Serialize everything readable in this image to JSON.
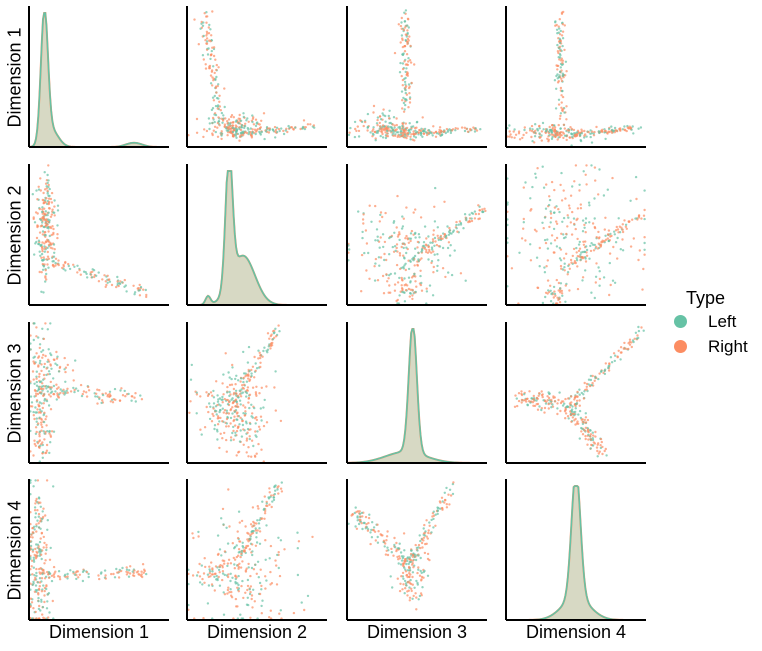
{
  "chart_data": {
    "type": "pairplot",
    "variables": [
      "Dimension 1",
      "Dimension 2",
      "Dimension 3",
      "Dimension 4"
    ],
    "diagonal": "kde",
    "off_diagonal": "scatter",
    "legend": {
      "title": "Type",
      "placement": "right",
      "entries": [
        {
          "name": "Left",
          "color": "#66c2a5"
        },
        {
          "name": "Right",
          "color": "#fc8d62"
        }
      ]
    },
    "diag_fill_color": "#d7d9c4",
    "point_alpha": 0.7,
    "approx_structure": {
      "Dimension 1": "sharp peak near low values with a long sparse tail",
      "Dimension 2": "single peak with small secondary bump on left",
      "Dimension 3": "narrow central peak",
      "Dimension 4": "narrow central peak with broad shoulders"
    }
  }
}
